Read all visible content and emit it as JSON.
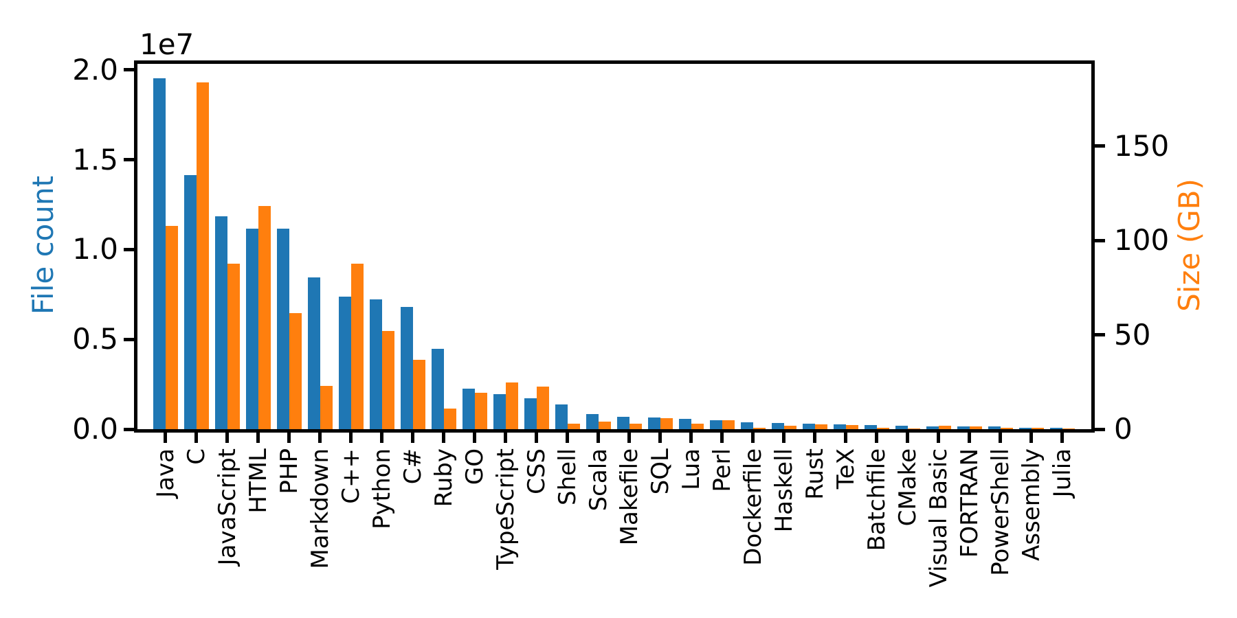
{
  "figure": {
    "background": "#ffffff"
  },
  "chart_data": {
    "type": "bar",
    "title": "",
    "grid": false,
    "legend": null,
    "categories": [
      "Java",
      "C",
      "JavaScript",
      "HTML",
      "PHP",
      "Markdown",
      "C++",
      "Python",
      "C#",
      "Ruby",
      "GO",
      "TypeScript",
      "CSS",
      "Shell",
      "Scala",
      "Makefile",
      "SQL",
      "Lua",
      "Perl",
      "Dockerfile",
      "Haskell",
      "Rust",
      "TeX",
      "Batchfile",
      "CMake",
      "Visual Basic",
      "FORTRAN",
      "PowerShell",
      "Assembly",
      "Julia"
    ],
    "series": [
      {
        "name": "File count",
        "axis": "left",
        "color": "#1f77b4",
        "values": [
          19548190,
          14143113,
          11839883,
          11178557,
          11177610,
          8464626,
          7380520,
          7226626,
          6811652,
          4473331,
          2265436,
          1940406,
          1734406,
          1385648,
          835755,
          679430,
          656671,
          578554,
          497949,
          366505,
          340623,
          322431,
          251015,
          236945,
          175282,
          155652,
          142038,
          136846,
          82905,
          58317
        ]
      },
      {
        "name": "Size (GB)",
        "axis": "right",
        "color": "#ff7f0e",
        "values": [
          107.7,
          183.83,
          87.82,
          118.12,
          61.41,
          23.09,
          87.73,
          52.03,
          36.83,
          10.95,
          19.28,
          24.59,
          22.67,
          3.01,
          3.87,
          2.92,
          5.67,
          2.81,
          4.7,
          0.71,
          1.85,
          2.68,
          2.15,
          0.7,
          0.54,
          1.91,
          1.62,
          0.69,
          0.78,
          0.29
        ]
      }
    ],
    "left_axis": {
      "label": "File count",
      "color": "#1f77b4",
      "offset_text": "1e7",
      "ticks": [
        0,
        5000000,
        10000000,
        15000000,
        20000000
      ],
      "tick_labels": [
        "0.0",
        "0.5",
        "1.0",
        "1.5",
        "2.0"
      ],
      "min": 0,
      "max": 20340000
    },
    "right_axis": {
      "label": "Size (GB)",
      "color": "#ff7f0e",
      "ticks": [
        0,
        50,
        100,
        150
      ],
      "tick_labels": [
        "0",
        "50",
        "100",
        "150"
      ],
      "min": 0,
      "max": 193.5
    }
  }
}
